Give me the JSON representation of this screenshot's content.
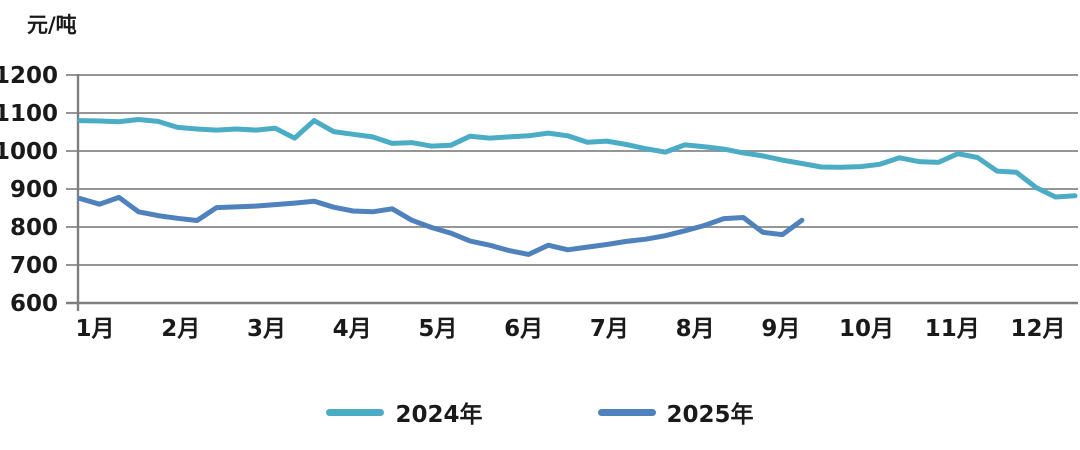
{
  "chart_data": {
    "type": "line",
    "title": "",
    "unit_label": "元/吨",
    "xlabel": "",
    "ylabel": "元/吨",
    "ylim": [
      600,
      1200
    ],
    "ytick_step": 100,
    "yticks": [
      600,
      700,
      800,
      900,
      1000,
      1100,
      1200
    ],
    "categories": [
      "1月",
      "2月",
      "3月",
      "4月",
      "5月",
      "6月",
      "7月",
      "8月",
      "9月",
      "10月",
      "11月",
      "12月"
    ],
    "sampling": "weekly",
    "grid": "horizontal",
    "legend_position": "bottom-center",
    "colors": {
      "grid": "#969696",
      "axis": "#7f7f7f",
      "text": "#1a1a1a"
    },
    "series": [
      {
        "id": "2024",
        "name": "2024年",
        "color": "#4BACC6",
        "values": [
          1080,
          1079,
          1077,
          1083,
          1078,
          1062,
          1058,
          1055,
          1058,
          1055,
          1060,
          1034,
          1080,
          1051,
          1044,
          1037,
          1020,
          1022,
          1013,
          1015,
          1039,
          1034,
          1037,
          1040,
          1047,
          1040,
          1023,
          1026,
          1017,
          1006,
          997,
          1016,
          1011,
          1005,
          995,
          987,
          976,
          967,
          958,
          957,
          959,
          965,
          982,
          972,
          970,
          993,
          983,
          947,
          944,
          904,
          879,
          882
        ]
      },
      {
        "id": "2025",
        "name": "2025年",
        "color": "#4F81BD",
        "values": [
          875,
          860,
          878,
          840,
          830,
          823,
          817,
          851,
          853,
          855,
          859,
          863,
          868,
          852,
          842,
          840,
          848,
          818,
          799,
          784,
          763,
          752,
          738,
          728,
          752,
          740,
          747,
          754,
          762,
          768,
          777,
          790,
          804,
          822,
          825,
          786,
          780,
          818
        ]
      }
    ]
  }
}
